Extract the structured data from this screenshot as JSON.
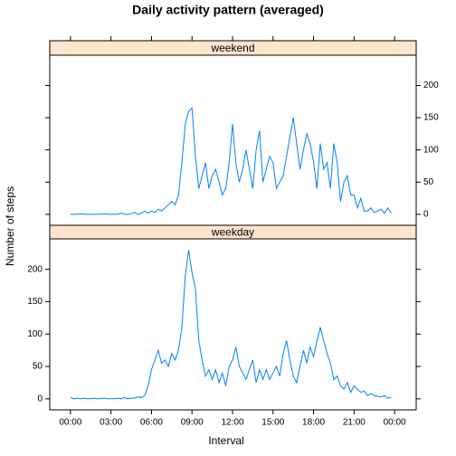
{
  "chart_data": {
    "type": "line",
    "title": "Daily activity pattern (averaged)",
    "x_label": "Interval",
    "y_label": "Number of steps",
    "color": "#0080ff",
    "x": [
      0,
      15,
      30,
      45,
      60,
      75,
      90,
      105,
      120,
      135,
      150,
      165,
      180,
      195,
      210,
      225,
      240,
      255,
      270,
      285,
      300,
      315,
      330,
      345,
      360,
      375,
      390,
      405,
      420,
      435,
      450,
      465,
      480,
      495,
      510,
      525,
      540,
      555,
      570,
      585,
      600,
      615,
      630,
      645,
      660,
      675,
      690,
      705,
      720,
      735,
      750,
      765,
      780,
      795,
      810,
      825,
      840,
      855,
      870,
      885,
      900,
      915,
      930,
      945,
      960,
      975,
      990,
      1005,
      1020,
      1035,
      1050,
      1065,
      1080,
      1095,
      1110,
      1125,
      1140,
      1155,
      1170,
      1185,
      1200,
      1215,
      1230,
      1245,
      1260,
      1275,
      1290,
      1305,
      1320,
      1335,
      1350,
      1365,
      1380,
      1395,
      1410,
      1425
    ],
    "xlim": [
      -92,
      1536
    ],
    "xticks": [
      {
        "value": 0,
        "label": "00:00"
      },
      {
        "value": 180,
        "label": "03:00"
      },
      {
        "value": 360,
        "label": "06:00"
      },
      {
        "value": 540,
        "label": "09:00"
      },
      {
        "value": 720,
        "label": "12:00"
      },
      {
        "value": 900,
        "label": "15:00"
      },
      {
        "value": 1080,
        "label": "18:00"
      },
      {
        "value": 1260,
        "label": "21:00"
      },
      {
        "value": 1440,
        "label": "00:00"
      }
    ],
    "ylim": [
      -17,
      247
    ],
    "yticks": [
      0,
      50,
      100,
      150,
      200
    ],
    "series": [
      {
        "name": "weekend",
        "values": [
          0,
          0,
          0,
          1,
          0,
          0,
          0,
          0,
          0,
          0,
          1,
          0,
          0,
          0,
          0,
          2,
          0,
          0,
          1,
          3,
          0,
          2,
          5,
          2,
          5,
          3,
          8,
          5,
          10,
          15,
          20,
          15,
          30,
          80,
          140,
          160,
          165,
          90,
          40,
          60,
          80,
          40,
          60,
          70,
          50,
          30,
          40,
          80,
          140,
          80,
          50,
          70,
          100,
          70,
          40,
          100,
          130,
          50,
          70,
          90,
          80,
          40,
          50,
          60,
          90,
          120,
          150,
          110,
          70,
          100,
          125,
          110,
          80,
          40,
          110,
          70,
          80,
          40,
          110,
          80,
          20,
          50,
          60,
          30,
          30,
          10,
          25,
          5,
          5,
          10,
          3,
          5,
          8,
          2,
          10,
          2
        ]
      },
      {
        "name": "weekday",
        "values": [
          2,
          0,
          1,
          0,
          1,
          0,
          0,
          1,
          0,
          0,
          1,
          0,
          0,
          0,
          1,
          0,
          2,
          0,
          1,
          1,
          3,
          2,
          5,
          20,
          45,
          60,
          75,
          55,
          60,
          50,
          70,
          60,
          75,
          110,
          190,
          230,
          195,
          170,
          90,
          60,
          35,
          45,
          30,
          45,
          25,
          40,
          20,
          50,
          60,
          80,
          50,
          40,
          30,
          45,
          60,
          25,
          45,
          30,
          45,
          30,
          40,
          50,
          35,
          70,
          90,
          60,
          35,
          25,
          50,
          75,
          55,
          80,
          65,
          90,
          110,
          90,
          70,
          55,
          30,
          35,
          20,
          15,
          25,
          10,
          20,
          15,
          10,
          12,
          5,
          8,
          5,
          4,
          3,
          5,
          1,
          2
        ]
      }
    ]
  }
}
